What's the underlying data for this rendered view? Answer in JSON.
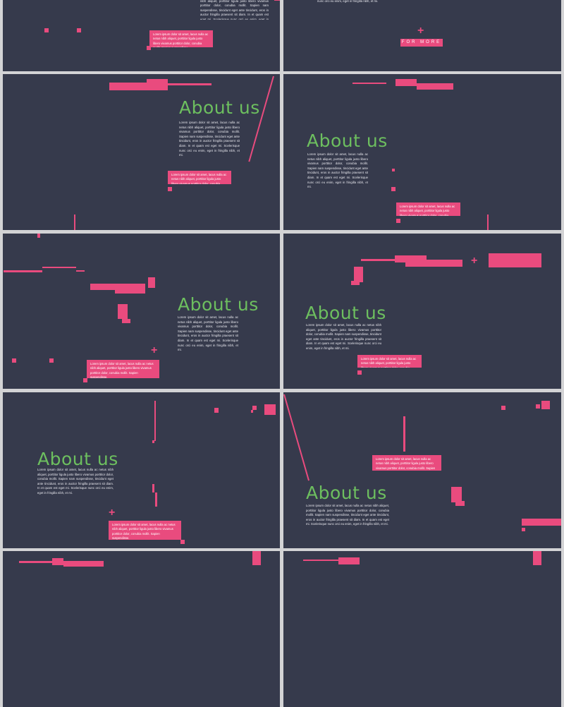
{
  "slides": {
    "title": "About us",
    "body": "Lorem ipsum dolor sit amet, lacus nulla ac netus nibh aliquet, porttitor ligula justo libero vivamus porttitor dolor, conubia mollit. Sapien nam suspendisse, tincidunt eget ante tincidunt, eros in auctor fringilla praesent sit diam. In et quam est eget mi. Scelerisque nunc orci eu enim, eget in fringilla nibh, et mi.",
    "callout": "Lorem ipsum dolor sit amet, lacus nulla ac netus nibh aliquet, porttitor ligula justo libero vivamus porttitor dolor, conubia mollit. Sapien suspendisse.",
    "for_more": "FOR MORE"
  },
  "colors": {
    "background": "#363a4c",
    "accent": "#e94b7e",
    "title": "#6dbf5f"
  }
}
